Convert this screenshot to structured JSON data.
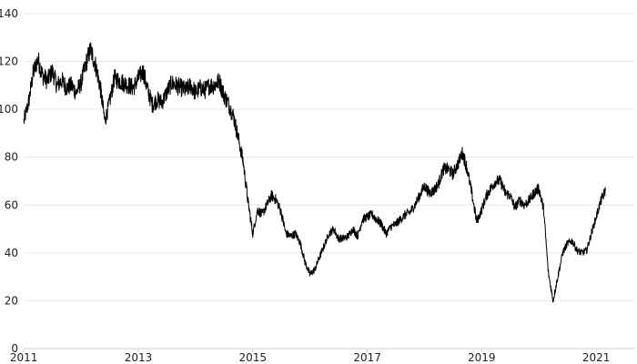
{
  "chart_data": {
    "type": "line",
    "title": "",
    "xlabel": "",
    "ylabel": "",
    "xlim": [
      "2010-12-31",
      "2021-09-01"
    ],
    "ylim": [
      0,
      140
    ],
    "grid": {
      "horizontal": true,
      "vertical": false
    },
    "legend": "none",
    "x_ticks": [
      {
        "value": "2011-01-01",
        "label": "2011"
      },
      {
        "value": "2013-01-01",
        "label": "2013"
      },
      {
        "value": "2015-01-01",
        "label": "2015"
      },
      {
        "value": "2017-01-01",
        "label": "2017"
      },
      {
        "value": "2019-01-01",
        "label": "2019"
      },
      {
        "value": "2021-01-01",
        "label": "2021"
      }
    ],
    "y_ticks": [
      0,
      20,
      40,
      60,
      80,
      100,
      120,
      140
    ],
    "colors": {
      "line": "#000000",
      "grid": "#e6e6e6",
      "text": "#222222"
    },
    "series": [
      {
        "x": [
          "2011-01-01",
          "2011-02-01",
          "2011-03-01",
          "2011-04-01",
          "2011-05-01",
          "2011-06-01",
          "2011-07-01",
          "2011-08-01",
          "2011-09-01",
          "2011-10-01",
          "2011-11-01",
          "2011-12-01",
          "2012-01-01",
          "2012-02-01",
          "2012-03-01",
          "2012-04-01",
          "2012-05-01",
          "2012-06-01",
          "2012-07-01",
          "2012-08-01",
          "2012-09-01",
          "2012-10-01",
          "2012-11-01",
          "2012-12-01",
          "2013-01-01",
          "2013-02-01",
          "2013-03-01",
          "2013-04-01",
          "2013-05-01",
          "2013-06-01",
          "2013-07-01",
          "2013-08-01",
          "2013-09-01",
          "2013-10-01",
          "2013-11-01",
          "2013-12-01",
          "2014-01-01",
          "2014-02-01",
          "2014-03-01",
          "2014-04-01",
          "2014-05-01",
          "2014-06-01",
          "2014-07-01",
          "2014-08-01",
          "2014-09-01",
          "2014-10-01",
          "2014-11-01",
          "2014-12-01",
          "2015-01-01",
          "2015-02-01",
          "2015-03-01",
          "2015-04-01",
          "2015-05-01",
          "2015-06-01",
          "2015-07-01",
          "2015-08-01",
          "2015-09-01",
          "2015-10-01",
          "2015-11-01",
          "2015-12-01",
          "2016-01-01",
          "2016-02-01",
          "2016-03-01",
          "2016-04-01",
          "2016-05-01",
          "2016-06-01",
          "2016-07-01",
          "2016-08-01",
          "2016-09-01",
          "2016-10-01",
          "2016-11-01",
          "2016-12-01",
          "2017-01-01",
          "2017-02-01",
          "2017-03-01",
          "2017-04-01",
          "2017-05-01",
          "2017-06-01",
          "2017-07-01",
          "2017-08-01",
          "2017-09-01",
          "2017-10-01",
          "2017-11-01",
          "2017-12-01",
          "2018-01-01",
          "2018-02-01",
          "2018-03-01",
          "2018-04-01",
          "2018-05-01",
          "2018-06-01",
          "2018-07-01",
          "2018-08-01",
          "2018-09-01",
          "2018-10-01",
          "2018-11-01",
          "2018-12-01",
          "2019-01-01",
          "2019-02-01",
          "2019-03-01",
          "2019-04-01",
          "2019-05-01",
          "2019-06-01",
          "2019-07-01",
          "2019-08-01",
          "2019-09-01",
          "2019-10-01",
          "2019-11-01",
          "2019-12-01",
          "2020-01-01",
          "2020-02-01",
          "2020-03-01",
          "2020-04-01",
          "2020-05-01",
          "2020-06-01",
          "2020-07-01",
          "2020-08-01",
          "2020-09-01",
          "2020-10-01",
          "2020-11-01",
          "2020-12-01",
          "2021-01-01",
          "2021-02-01",
          "2021-03-01"
        ],
        "values": [
          95,
          103,
          115,
          121,
          114,
          112,
          116,
          110,
          112,
          109,
          110,
          107,
          111,
          119,
          125,
          119,
          110,
          95,
          103,
          113,
          112,
          111,
          110,
          109,
          113,
          116,
          108,
          102,
          104,
          103,
          107,
          111,
          110,
          109,
          108,
          110,
          107,
          109,
          108,
          110,
          110,
          112,
          106,
          102,
          97,
          88,
          78,
          62,
          48,
          58,
          56,
          60,
          64,
          62,
          57,
          48,
          47,
          48,
          44,
          36,
          31,
          33,
          38,
          43,
          48,
          50,
          46,
          46,
          47,
          50,
          47,
          54,
          55,
          56,
          54,
          52,
          48,
          51,
          52,
          54,
          56,
          57,
          60,
          64,
          68,
          65,
          66,
          69,
          75,
          75,
          73,
          77,
          82,
          75,
          64,
          53,
          58,
          64,
          67,
          70,
          70,
          65,
          64,
          59,
          62,
          60,
          62,
          65,
          67,
          58,
          32,
          20,
          30,
          40,
          44,
          45,
          41,
          40,
          41,
          48,
          55,
          62,
          66
        ]
      }
    ]
  }
}
